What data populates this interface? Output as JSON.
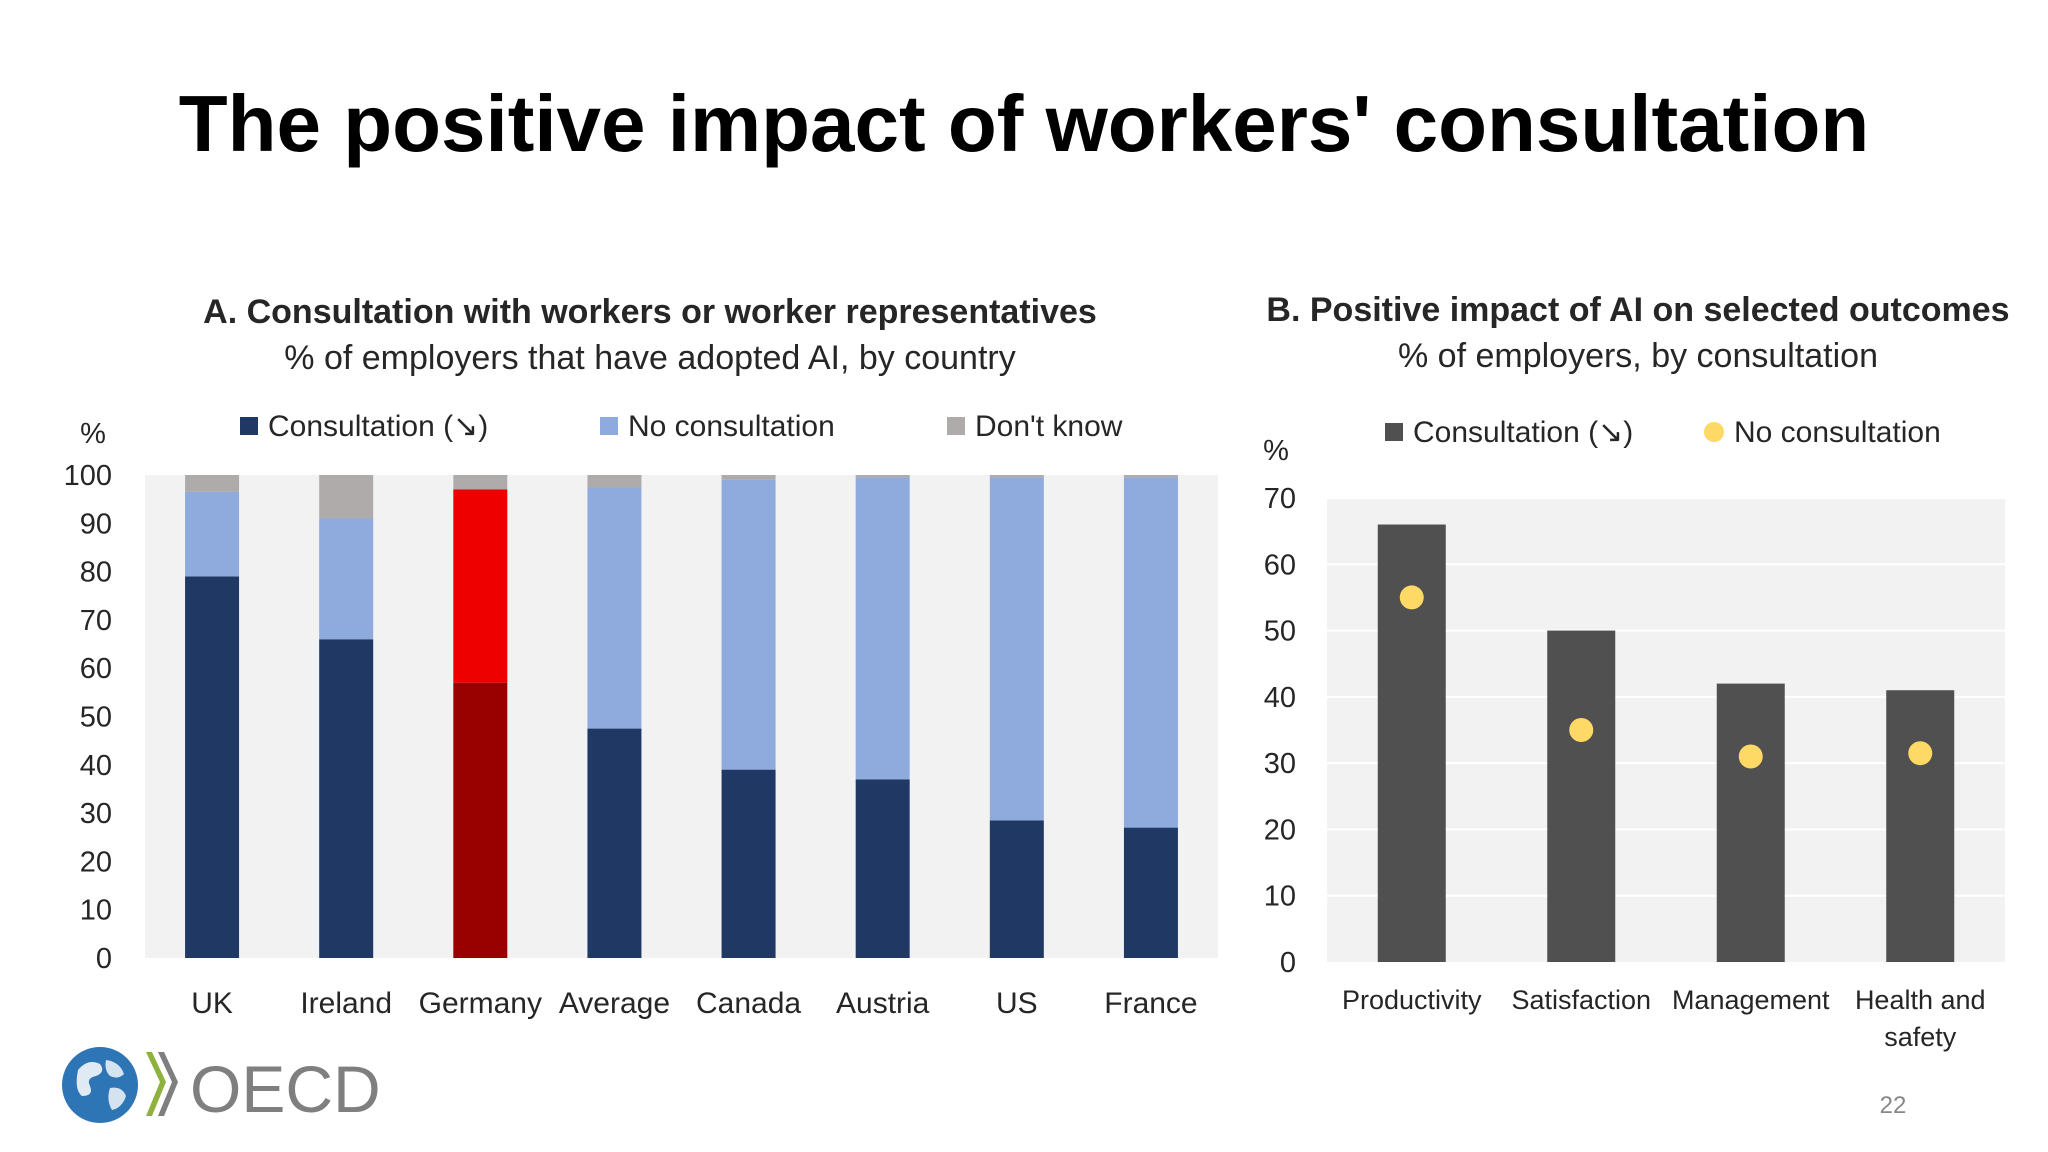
{
  "slide": {
    "title": "The positive impact of workers' consultation",
    "page_number": "22",
    "logo_text": "OECD"
  },
  "chart_data": [
    {
      "type": "bar",
      "stacked": true,
      "title": "A. Consultation with workers or worker representatives",
      "subtitle": "% of employers that have adopted AI, by country",
      "unit_label": "%",
      "categories": [
        "UK",
        "Ireland",
        "Germany",
        "Average",
        "Canada",
        "Austria",
        "US",
        "France"
      ],
      "highlight_category": "Germany",
      "ylim": [
        0,
        100
      ],
      "yticks": [
        0,
        10,
        20,
        30,
        40,
        50,
        60,
        70,
        80,
        90,
        100
      ],
      "grid": false,
      "legend_position": "top",
      "series": [
        {
          "name": "Consultation (↘)",
          "color": "#203864",
          "highlight_color": "#990000",
          "values": [
            79,
            66,
            57,
            47.5,
            39,
            37,
            28.5,
            27
          ]
        },
        {
          "name": "No consultation",
          "color": "#8FAADC",
          "highlight_color": "#EE0000",
          "values": [
            17.5,
            25,
            40,
            50,
            60,
            62.5,
            71,
            72.5
          ]
        },
        {
          "name": "Don't know",
          "color": "#AFABAB",
          "highlight_color": "#AFABAB",
          "values": [
            3.5,
            9,
            3,
            2.5,
            1,
            0.5,
            0.5,
            0.5
          ]
        }
      ]
    },
    {
      "type": "bar",
      "title": "B. Positive impact of AI on selected outcomes",
      "subtitle": "% of employers, by consultation",
      "unit_label": "%",
      "categories": [
        "Productivity",
        "Satisfaction",
        "Management",
        [
          "Health and",
          "safety"
        ]
      ],
      "ylim": [
        0,
        70
      ],
      "yticks": [
        0,
        10,
        20,
        30,
        40,
        50,
        60,
        70
      ],
      "grid": true,
      "legend_position": "top",
      "series": [
        {
          "name": "Consultation (↘)",
          "kind": "bar",
          "color": "#505050",
          "values": [
            66,
            50,
            42,
            41
          ]
        },
        {
          "name": "No consultation",
          "kind": "dot",
          "color": "#FFD966",
          "values": [
            55,
            35,
            31,
            31.5
          ]
        }
      ]
    }
  ]
}
